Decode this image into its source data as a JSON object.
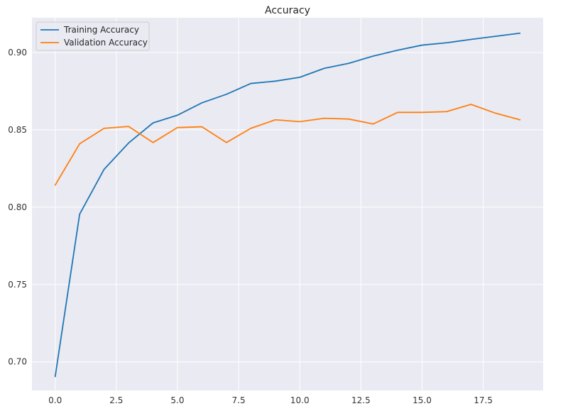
{
  "chart_data": {
    "type": "line",
    "title": "Accuracy",
    "xlabel": "",
    "ylabel": "",
    "xlim": [
      -0.95,
      19.95
    ],
    "ylim": [
      0.6815,
      0.9225
    ],
    "xticks": [
      0.0,
      2.5,
      5.0,
      7.5,
      10.0,
      12.5,
      15.0,
      17.5
    ],
    "xtick_labels": [
      "0.0",
      "2.5",
      "5.0",
      "7.5",
      "10.0",
      "12.5",
      "15.0",
      "17.5"
    ],
    "yticks": [
      0.7,
      0.75,
      0.8,
      0.85,
      0.9
    ],
    "ytick_labels": [
      "0.70",
      "0.75",
      "0.80",
      "0.85",
      "0.90"
    ],
    "grid": true,
    "legend_position": "top-left",
    "x": [
      0,
      1,
      2,
      3,
      4,
      5,
      6,
      7,
      8,
      9,
      10,
      11,
      12,
      13,
      14,
      15,
      16,
      17,
      18,
      19
    ],
    "series": [
      {
        "name": "Training Accuracy",
        "color": "#1f77b4",
        "values": [
          0.6905,
          0.7955,
          0.8245,
          0.8415,
          0.8545,
          0.8595,
          0.8675,
          0.873,
          0.88,
          0.8815,
          0.884,
          0.8898,
          0.893,
          0.8977,
          0.9015,
          0.9048,
          0.9063,
          0.9085,
          0.9105,
          0.9125
        ]
      },
      {
        "name": "Validation Accuracy",
        "color": "#ff7f0e",
        "values": [
          0.8143,
          0.841,
          0.851,
          0.8522,
          0.8418,
          0.8515,
          0.852,
          0.8418,
          0.851,
          0.8565,
          0.8553,
          0.8575,
          0.857,
          0.8538,
          0.8613,
          0.8613,
          0.8618,
          0.8665,
          0.8608,
          0.8565
        ]
      }
    ]
  }
}
